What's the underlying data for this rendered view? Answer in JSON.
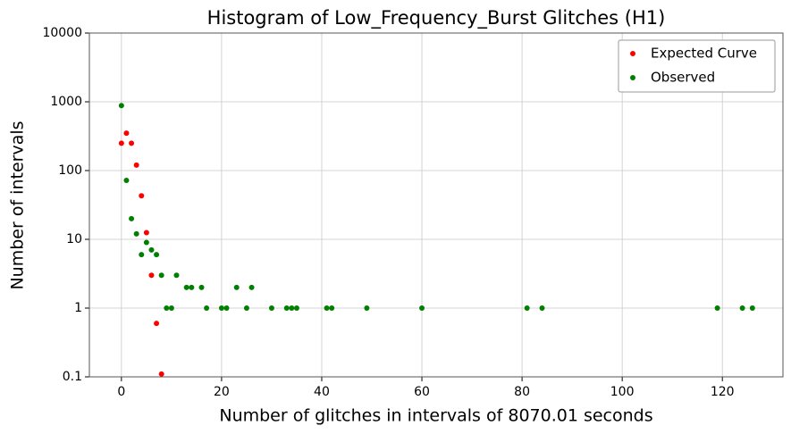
{
  "chart_data": {
    "type": "scatter",
    "title": "Histogram of Low_Frequency_Burst Glitches (H1)",
    "xlabel": "Number of glitches in intervals of 8070.01 seconds",
    "ylabel": "Number of intervals",
    "xlim": [
      -6.4,
      132.1
    ],
    "xticks": [
      0,
      20,
      40,
      60,
      80,
      100,
      120
    ],
    "ylim": [
      0.1,
      10000
    ],
    "yticks": [
      0.1,
      1,
      10,
      100,
      1000,
      10000
    ],
    "log_y": true,
    "grid": true,
    "legend": "upper right",
    "series": [
      {
        "name": "Expected Curve",
        "color": "#ff0000",
        "x": [
          0,
          1,
          2,
          3,
          4,
          5,
          6,
          7,
          8
        ],
        "values": [
          250,
          350,
          250,
          120,
          43,
          12.5,
          3,
          0.6,
          0.11
        ]
      },
      {
        "name": "Observed",
        "color": "#008000",
        "x": [
          0,
          1,
          2,
          3,
          4,
          5,
          6,
          7,
          8,
          9,
          10,
          11,
          13,
          14,
          16,
          17,
          20,
          21,
          23,
          25,
          26,
          30,
          33,
          34,
          35,
          41,
          42,
          49,
          60,
          81,
          84,
          119,
          124,
          126
        ],
        "values": [
          880,
          72,
          20,
          12,
          6,
          9,
          7,
          6,
          3,
          1,
          1,
          3,
          2,
          2,
          2,
          1,
          1,
          1,
          2,
          1,
          2,
          1,
          1,
          1,
          1,
          1,
          1,
          1,
          1,
          1,
          1,
          1,
          1,
          1
        ]
      }
    ]
  }
}
